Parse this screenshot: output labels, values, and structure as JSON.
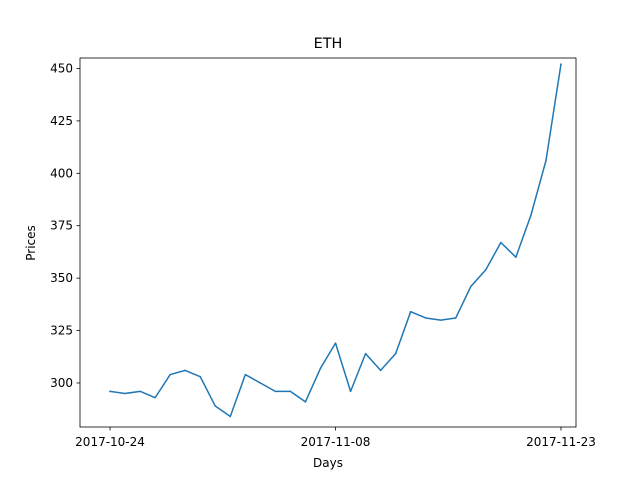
{
  "chart_data": {
    "type": "line",
    "title": "ETH",
    "xlabel": "Days",
    "ylabel": "Prices",
    "x_tick_labels": [
      "2017-10-24",
      "2017-11-08",
      "2017-11-23"
    ],
    "y_tick_labels": [
      "300",
      "325",
      "350",
      "375",
      "400",
      "425",
      "450"
    ],
    "y_ticks": [
      300,
      325,
      350,
      375,
      400,
      425,
      450
    ],
    "ylim": [
      279,
      455
    ],
    "xlim": [
      "2017-10-22",
      "2017-11-24"
    ],
    "grid": false,
    "series": [
      {
        "color": "#1f77b4",
        "x": [
          "2017-10-24",
          "2017-10-25",
          "2017-10-26",
          "2017-10-27",
          "2017-10-28",
          "2017-10-29",
          "2017-10-30",
          "2017-10-31",
          "2017-11-01",
          "2017-11-02",
          "2017-11-03",
          "2017-11-04",
          "2017-11-05",
          "2017-11-06",
          "2017-11-07",
          "2017-11-08",
          "2017-11-09",
          "2017-11-10",
          "2017-11-11",
          "2017-11-12",
          "2017-11-13",
          "2017-11-14",
          "2017-11-15",
          "2017-11-16",
          "2017-11-17",
          "2017-11-18",
          "2017-11-19",
          "2017-11-20",
          "2017-11-21",
          "2017-11-22",
          "2017-11-23"
        ],
        "y": [
          296,
          295,
          296,
          293,
          304,
          306,
          303,
          289,
          284,
          304,
          300,
          296,
          296,
          291,
          307,
          319,
          296,
          314,
          306,
          314,
          334,
          331,
          330,
          331,
          346,
          354,
          367,
          360,
          380,
          406,
          452
        ]
      }
    ]
  }
}
